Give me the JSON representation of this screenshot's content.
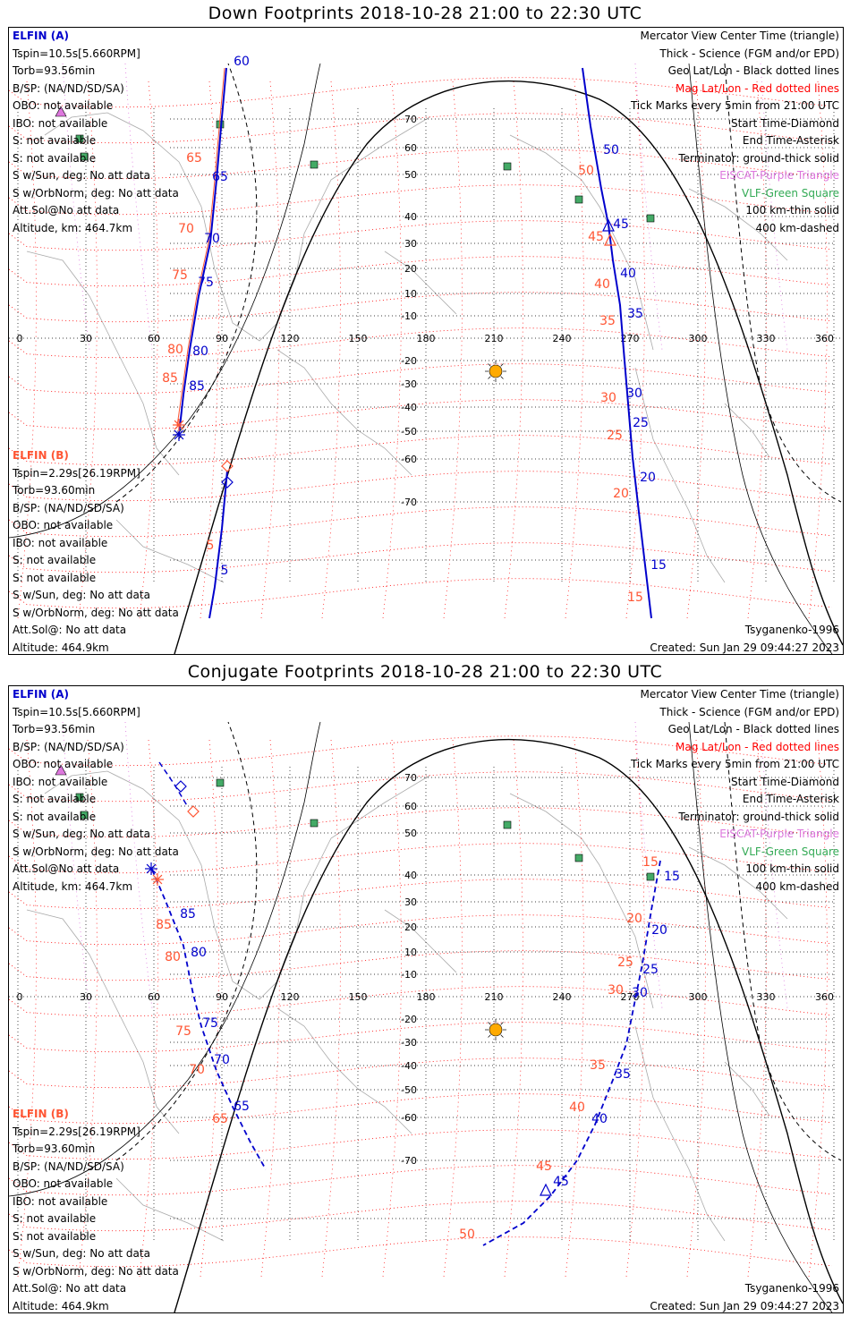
{
  "top": {
    "title": "Down Footprints 2018-10-28 21:00 to 22:30 UTC",
    "elfin_a": {
      "name": "ELFIN (A)",
      "lines": [
        "Tspin=10.5s[5.660RPM]",
        "Torb=93.56min",
        "B/SP: (NA/ND/SD/SA)",
        "OBO: not available",
        "IBO: not available",
        "S: not available",
        "S: not available",
        "S w/Sun, deg: No att data",
        "S w/OrbNorm, deg: No att data",
        "Att.Sol@No att data",
        "Altitude, km: 464.7km"
      ]
    },
    "elfin_b": {
      "name": "ELFIN (B)",
      "lines": [
        "Tspin=2.29s[26.19RPM]",
        "Torb=93.60min",
        "B/SP: (NA/ND/SD/SA)",
        "OBO: not available",
        "IBO: not available",
        "S: not available",
        "S: not available",
        "S w/Sun, deg: No att data",
        "S w/OrbNorm, deg: No att data",
        "Att.Sol@: No att data",
        "Altitude: 464.9km"
      ]
    },
    "footer_model": "Tsyganenko-1996",
    "footer_created": "Created: Sun Jan 29 09:44:27 2023"
  },
  "bottom": {
    "title": "Conjugate Footprints 2018-10-28 21:00 to 22:30 UTC",
    "elfin_a": {
      "name": "ELFIN (A)",
      "lines": [
        "Tspin=10.5s[5.660RPM]",
        "Torb=93.56min",
        "B/SP: (NA/ND/SD/SA)",
        "OBO: not available",
        "IBO: not available",
        "S: not available",
        "S: not available",
        "S w/Sun, deg: No att data",
        "S w/OrbNorm, deg: No att data",
        "Att.Sol@No att data",
        "Altitude, km: 464.7km"
      ]
    },
    "elfin_b": {
      "name": "ELFIN (B)",
      "lines": [
        "Tspin=2.29s[26.19RPM]",
        "Torb=93.60min",
        "B/SP: (NA/ND/SD/SA)",
        "OBO: not available",
        "IBO: not available",
        "S: not available",
        "S: not available",
        "S w/Sun, deg: No att data",
        "S w/OrbNorm, deg: No att data",
        "Att.Sol@: No att data",
        "Altitude: 464.9km"
      ]
    },
    "footer_model": "Tsyganenko-1996",
    "footer_created": "Created: Sun Jan 29 09:44:27 2023"
  },
  "legend": [
    {
      "text": "Mercator View Center Time (triangle)",
      "color": "#000000"
    },
    {
      "text": "Thick - Science (FGM and/or EPD)",
      "color": "#000000"
    },
    {
      "text": "Geo Lat/Lon - Black dotted lines",
      "color": "#000000"
    },
    {
      "text": "Mag Lat/Lon - Red dotted lines",
      "color": "#ff0000"
    },
    {
      "text": "Tick Marks every 5min from 21:00 UTC",
      "color": "#000000"
    },
    {
      "text": "Start Time-Diamond",
      "color": "#000000"
    },
    {
      "text": "End Time-Asterisk",
      "color": "#000000"
    },
    {
      "text": "Terminator: ground-thick solid",
      "color": "#000000"
    },
    {
      "text": "EISCAT-Purple Triangle",
      "color": "#dd77dd"
    },
    {
      "text": "VLF-Green Square",
      "color": "#33aa55"
    },
    {
      "text": "100 km-thin solid",
      "color": "#000000"
    },
    {
      "text": "400 km-dashed",
      "color": "#000000"
    }
  ],
  "axes": {
    "lon_ticks": [
      "0",
      "30",
      "60",
      "90",
      "120",
      "150",
      "180",
      "210",
      "240",
      "270",
      "300",
      "330",
      "360"
    ],
    "lat_ticks": [
      "70",
      "60",
      "50",
      "40",
      "30",
      "20",
      "10",
      "-10",
      "-20",
      "-30",
      "-40",
      "-50",
      "-60",
      "-70"
    ]
  },
  "tracks": {
    "top": {
      "a_blue": [
        "60",
        "65",
        "70",
        "75",
        "80",
        "85"
      ],
      "a_orange": [
        "65",
        "70",
        "75",
        "80",
        "85"
      ],
      "b_blue": [
        "5"
      ],
      "b_orange": [
        "5"
      ],
      "right_blue": [
        "50",
        "45",
        "40",
        "35",
        "30",
        "25",
        "20",
        "15"
      ],
      "right_orange": [
        "50",
        "45",
        "40",
        "35",
        "30",
        "25",
        "20",
        "15"
      ]
    },
    "bottom": {
      "a_blue": [
        "85",
        "80",
        "75",
        "70",
        "65"
      ],
      "a_orange": [
        "85",
        "80",
        "75",
        "70",
        "65"
      ],
      "right_blue": [
        "15",
        "20",
        "25",
        "30",
        "35",
        "40",
        "45"
      ],
      "right_orange": [
        "15",
        "20",
        "25",
        "30",
        "35",
        "40",
        "45",
        "50"
      ]
    }
  },
  "colors": {
    "track_blue": "#0000cc",
    "mag_red": "#ff0000",
    "label_orange": "#ff5533",
    "eiscat_purple": "#dd77dd",
    "vlf_green": "#44aa66",
    "sun_orange": "#ffaa00"
  }
}
